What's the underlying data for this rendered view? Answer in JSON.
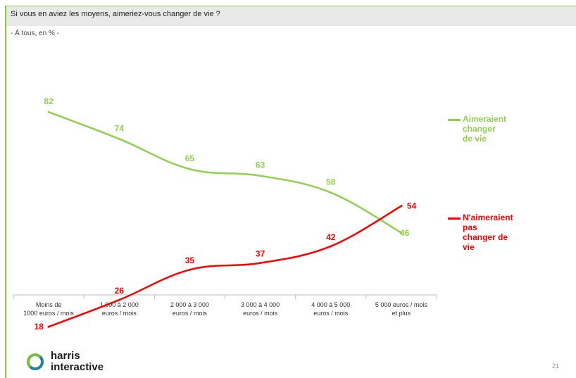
{
  "header": {
    "title": "Si vous en aviez les moyens, aimeriez-vous changer de vie ?",
    "subtitle": "- À tous, en % -"
  },
  "chart_data": {
    "type": "line",
    "categories": [
      "Moins de\n1000 euros / mois",
      "1 000 à 2 000\neuros / mois",
      "2 000 à 3 000\neuros / mois",
      "3 000 à 4 000\neuros / mois",
      "4 000 à 5 000\neuros / mois",
      "5 000 euros / mois\net plus"
    ],
    "series": [
      {
        "name": "Aimeraient changer de vie",
        "values": [
          82,
          74,
          65,
          63,
          58,
          46
        ],
        "color": "#92d050"
      },
      {
        "name": "N'aimeraient pas changer de vie",
        "values": [
          18,
          26,
          35,
          37,
          42,
          54
        ],
        "color": "#ff0000"
      }
    ],
    "ylim": [
      0,
      100
    ],
    "grid": false,
    "legend_placement": "right",
    "xlabel": "",
    "ylabel": ""
  },
  "legend": {
    "items": [
      {
        "label": "Aimeraient changer\nde vie",
        "color": "#92d050"
      },
      {
        "label": "N'aimeraient pas\nchanger de vie",
        "color": "#ff0000"
      }
    ]
  },
  "branding": {
    "logo_text": "harris\ninteractive",
    "page_number": "21"
  }
}
